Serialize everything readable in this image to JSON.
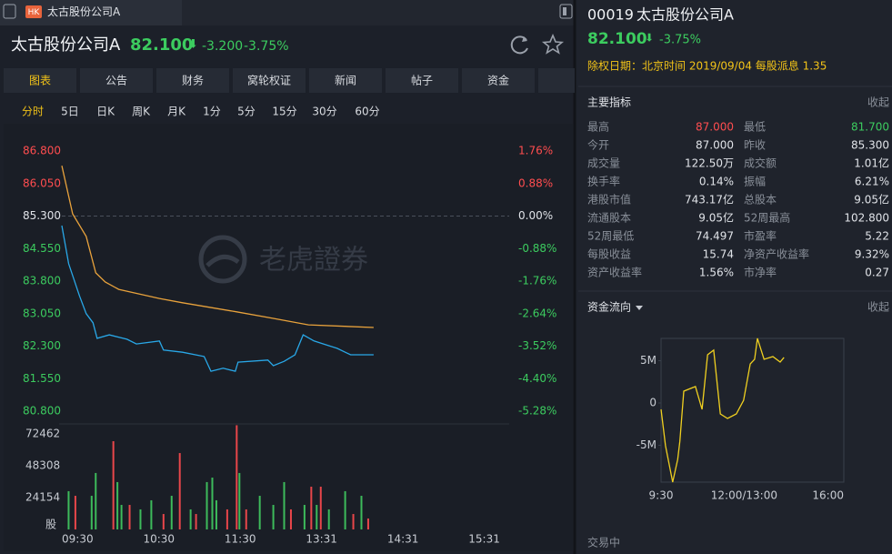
{
  "tab": {
    "badge": "HK",
    "title": "太古股份公司A"
  },
  "header": {
    "name": "太古股份公司A",
    "price": "82.100",
    "arrow": "⬇",
    "change": "-3.200",
    "change_pct": "-3.75%"
  },
  "nav_tabs": [
    "图表",
    "公告",
    "财务",
    "窝轮权证",
    "新闻",
    "帖子",
    "资金"
  ],
  "periods": [
    "分时",
    "5日",
    "日K",
    "周K",
    "月K",
    "1分",
    "5分",
    "15分",
    "30分",
    "60分"
  ],
  "watermark": "老虎證券",
  "price_chart": {
    "type": "line",
    "xlim": [
      0,
      330
    ],
    "xticks": [
      {
        "value": 0,
        "label": "09:30"
      },
      {
        "value": 60,
        "label": "10:30"
      },
      {
        "value": 120,
        "label": "11:30"
      },
      {
        "value": 180,
        "label": "13:31"
      },
      {
        "value": 240,
        "label": "14:31"
      },
      {
        "value": 300,
        "label": "15:31"
      }
    ],
    "ylim": [
      80.8,
      86.8
    ],
    "yticks": [
      {
        "value": 86.8,
        "label": "86.800"
      },
      {
        "value": 86.05,
        "label": "86.050"
      },
      {
        "value": 85.3,
        "label": "85.300"
      },
      {
        "value": 84.55,
        "label": "84.550"
      },
      {
        "value": 83.8,
        "label": "83.800"
      },
      {
        "value": 83.05,
        "label": "83.050"
      },
      {
        "value": 82.3,
        "label": "82.300"
      },
      {
        "value": 81.55,
        "label": "81.550"
      },
      {
        "value": 80.8,
        "label": "80.800"
      }
    ],
    "y2lim": [
      -5.28,
      1.76
    ],
    "y2ticks": [
      {
        "value": 1.76,
        "label": "1.76%"
      },
      {
        "value": 0.88,
        "label": "0.88%"
      },
      {
        "value": 0,
        "label": "0.00%"
      },
      {
        "value": -0.88,
        "label": "-0.88%"
      },
      {
        "value": -1.76,
        "label": "-1.76%"
      },
      {
        "value": -2.64,
        "label": "-2.64%"
      },
      {
        "value": -3.52,
        "label": "-3.52%"
      },
      {
        "value": -4.4,
        "label": "-4.40%"
      },
      {
        "value": -5.28,
        "label": "-5.28%"
      }
    ],
    "series": [
      {
        "color": "#29a8e8",
        "x": [
          0,
          5,
          13,
          18,
          23,
          26,
          35,
          48,
          55,
          72,
          75,
          89,
          105,
          110,
          119,
          128,
          130,
          152,
          156,
          164,
          172,
          178,
          186,
          193,
          203,
          213,
          230
        ],
        "values": [
          85.08,
          84.2,
          83.46,
          83.05,
          82.84,
          82.48,
          82.56,
          82.46,
          82.35,
          82.42,
          82.21,
          82.16,
          82.06,
          81.72,
          81.79,
          81.72,
          81.93,
          81.98,
          81.85,
          81.95,
          82.1,
          82.56,
          82.42,
          82.35,
          82.25,
          82.1,
          82.1
        ]
      },
      {
        "color": "#e8a23c",
        "x": [
          0,
          8,
          18,
          25,
          32,
          42,
          72,
          89,
          129,
          156,
          182,
          230
        ],
        "values": [
          86.46,
          85.35,
          84.83,
          83.99,
          83.78,
          83.61,
          83.4,
          83.3,
          83.09,
          82.94,
          82.79,
          82.73
        ]
      }
    ]
  },
  "volume_chart": {
    "type": "bar",
    "unit": "股",
    "ylim": [
      0,
      80000
    ],
    "yticks": [
      72462,
      48308,
      24154
    ],
    "up": {
      "color": "#e8464a",
      "x": [
        10,
        38,
        50,
        75,
        87,
        99,
        122,
        129,
        136,
        169,
        184,
        191,
        215,
        226
      ],
      "values": [
        25500,
        66900,
        18600,
        11700,
        57900,
        11700,
        15200,
        79000,
        15200,
        15200,
        32400,
        32400,
        11700,
        8300
      ]
    },
    "down": {
      "color": "#3dbb5b",
      "x": [
        5,
        22,
        25,
        41,
        44,
        58,
        66,
        81,
        95,
        107,
        111,
        114,
        131,
        146,
        156,
        164,
        179,
        188,
        197,
        209,
        221
      ],
      "values": [
        29000,
        25500,
        42800,
        35900,
        18600,
        15200,
        22100,
        25500,
        15200,
        35900,
        39300,
        22100,
        42800,
        25500,
        18600,
        35900,
        18600,
        18600,
        15200,
        29000,
        25500
      ]
    }
  },
  "side": {
    "code": "00019",
    "name": "太古股份公司A",
    "price": "82.100",
    "arrow": "⬇",
    "change_pct": "-3.75%",
    "notice": "除权日期：北京时间 2019/09/04 每股派息 1.35",
    "indicators_title": "主要指标",
    "collapse": "收起",
    "indicators": [
      [
        "最高",
        "87.000",
        "最低",
        "81.700"
      ],
      [
        "今开",
        "87.000",
        "昨收",
        "85.300"
      ],
      [
        "成交量",
        "122.50万",
        "成交额",
        "1.01亿"
      ],
      [
        "换手率",
        "0.14%",
        "振幅",
        "6.21%"
      ],
      [
        "港股市值",
        "743.17亿",
        "总股本",
        "9.05亿"
      ],
      [
        "流通股本",
        "9.05亿",
        "52周最高",
        "102.800"
      ],
      [
        "52周最低",
        "74.497",
        "市盈率",
        "5.22"
      ],
      [
        "每股收益",
        "15.74",
        "净资产收益率",
        "9.32%"
      ],
      [
        "资产收益率",
        "1.56%",
        "市净率",
        "0.27"
      ]
    ],
    "flow_title": "资金流向",
    "flow_collapse": "收起",
    "status": "交易中"
  },
  "flow_chart": {
    "type": "line",
    "color": "#f0d020",
    "xlim": [
      0,
      330
    ],
    "xticks": [
      {
        "value": 0,
        "label": "9:30"
      },
      {
        "value": 150,
        "label": "12:00/13:00"
      },
      {
        "value": 330,
        "label": "16:00"
      }
    ],
    "ylim": [
      -9.35,
      7.63
    ],
    "yticks": [
      {
        "value": 5,
        "label": "5M"
      },
      0,
      {
        "value": -5,
        "label": "-5M"
      }
    ],
    "x": [
      0,
      8,
      21,
      30,
      34,
      41,
      62,
      74,
      84,
      95,
      107,
      120,
      136,
      149,
      161,
      169,
      174,
      186,
      202,
      215,
      222
    ],
    "values": [
      -0.75,
      -5.05,
      -9.35,
      -6.67,
      -4.52,
      1.4,
      1.94,
      -0.75,
      5.7,
      6.24,
      -1.29,
      -1.83,
      -1.29,
      0.32,
      4.62,
      5.16,
      7.63,
      5.16,
      5.48,
      4.84,
      5.38
    ]
  }
}
